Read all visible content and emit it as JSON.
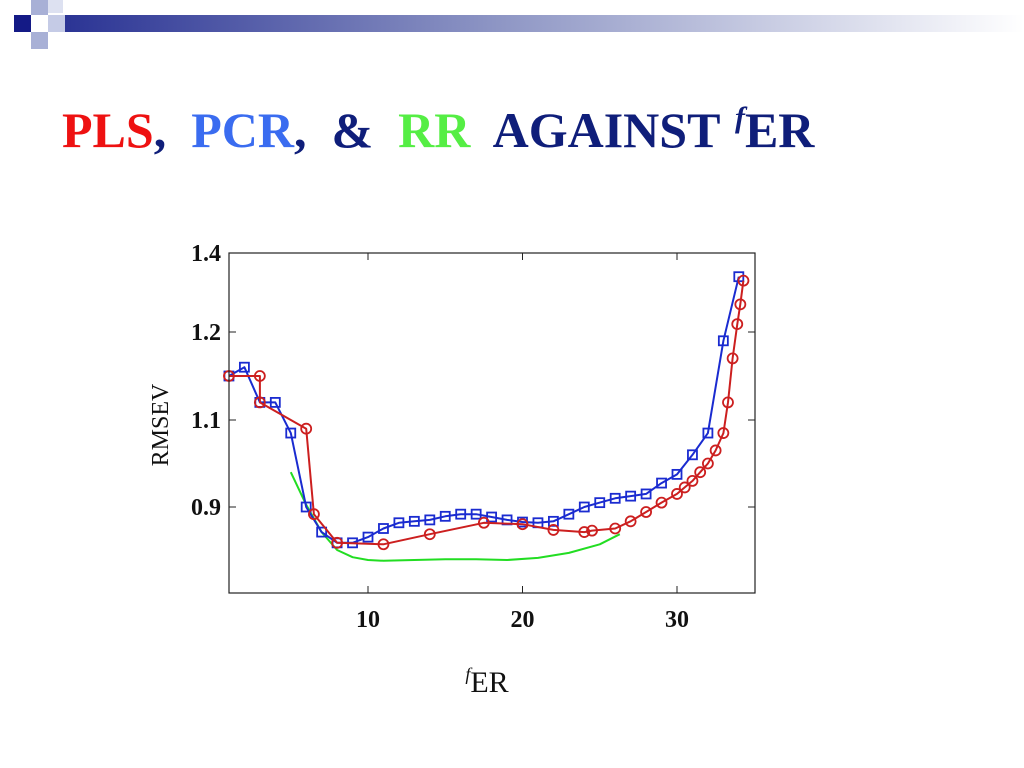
{
  "slide": {
    "title_parts": {
      "pls": "PLS",
      "comma1": ",",
      "pcr": "PCR",
      "comma2": ",",
      "amp": "&",
      "rr": "RR",
      "against": "AGAINST",
      "sup_f": "f",
      "er": "ER"
    },
    "colors": {
      "pls": "#ee1111",
      "pcr": "#3a6cf0",
      "rr": "#55ee44",
      "title_dark": "#0f1e7a",
      "deco_dark": "#141a86",
      "deco_light": "#9da6cf"
    }
  },
  "chart_data": {
    "type": "line",
    "title": "",
    "xlabel_sup": "f",
    "xlabel": "ER",
    "ylabel": "RMSEV",
    "xlim": [
      1,
      35
    ],
    "ylim": [
      0.78,
      1.4
    ],
    "xticks": [
      10,
      20,
      30
    ],
    "yticks": [
      0.9,
      1.1,
      1.2,
      1.4
    ],
    "ytick_labels": [
      "0.9",
      "1.1",
      "1.2",
      "1.4"
    ],
    "xtick_labels": [
      "10",
      "20",
      "30"
    ],
    "grid": false,
    "legend": false,
    "series": [
      {
        "color": "#1a2bd0",
        "marker": "square",
        "x": [
          1,
          2,
          3,
          4,
          5,
          6,
          7,
          8,
          9,
          10,
          11,
          12,
          13,
          14,
          15,
          16,
          17,
          18,
          19,
          20,
          21,
          22,
          23,
          24,
          25,
          26,
          27,
          28,
          29,
          30,
          31,
          32,
          33,
          34
        ],
        "y": [
          1.15,
          1.16,
          1.12,
          1.12,
          1.07,
          0.9,
          0.865,
          0.85,
          0.85,
          0.858,
          0.87,
          0.878,
          0.88,
          0.882,
          0.887,
          0.89,
          0.89,
          0.886,
          0.882,
          0.879,
          0.878,
          0.88,
          0.89,
          0.9,
          0.91,
          0.92,
          0.925,
          0.93,
          0.955,
          0.975,
          1.02,
          1.07,
          1.19,
          1.34
        ]
      },
      {
        "color": "#cc1f1f",
        "marker": "circle",
        "x": [
          1,
          3,
          3,
          6,
          6.5,
          8,
          11,
          14,
          17.5,
          20,
          22,
          24,
          24.5,
          26,
          27,
          28,
          29,
          30,
          30.5,
          31,
          31.5,
          32,
          32.5,
          33,
          33.3,
          33.6,
          33.9,
          34.1,
          34.3
        ],
        "y": [
          1.15,
          1.15,
          1.12,
          1.08,
          0.89,
          0.85,
          0.848,
          0.862,
          0.878,
          0.876,
          0.868,
          0.865,
          0.867,
          0.87,
          0.88,
          0.893,
          0.91,
          0.93,
          0.945,
          0.96,
          0.98,
          1.0,
          1.03,
          1.07,
          1.12,
          1.17,
          1.22,
          1.27,
          1.33
        ]
      },
      {
        "color": "#22dd22",
        "marker": "none",
        "x": [
          5,
          6,
          7,
          8,
          9,
          10,
          11,
          13,
          15,
          17,
          19,
          21,
          23,
          25,
          26.3
        ],
        "y": [
          0.98,
          0.905,
          0.865,
          0.84,
          0.83,
          0.826,
          0.825,
          0.826,
          0.827,
          0.827,
          0.826,
          0.829,
          0.836,
          0.848,
          0.862
        ]
      }
    ]
  }
}
